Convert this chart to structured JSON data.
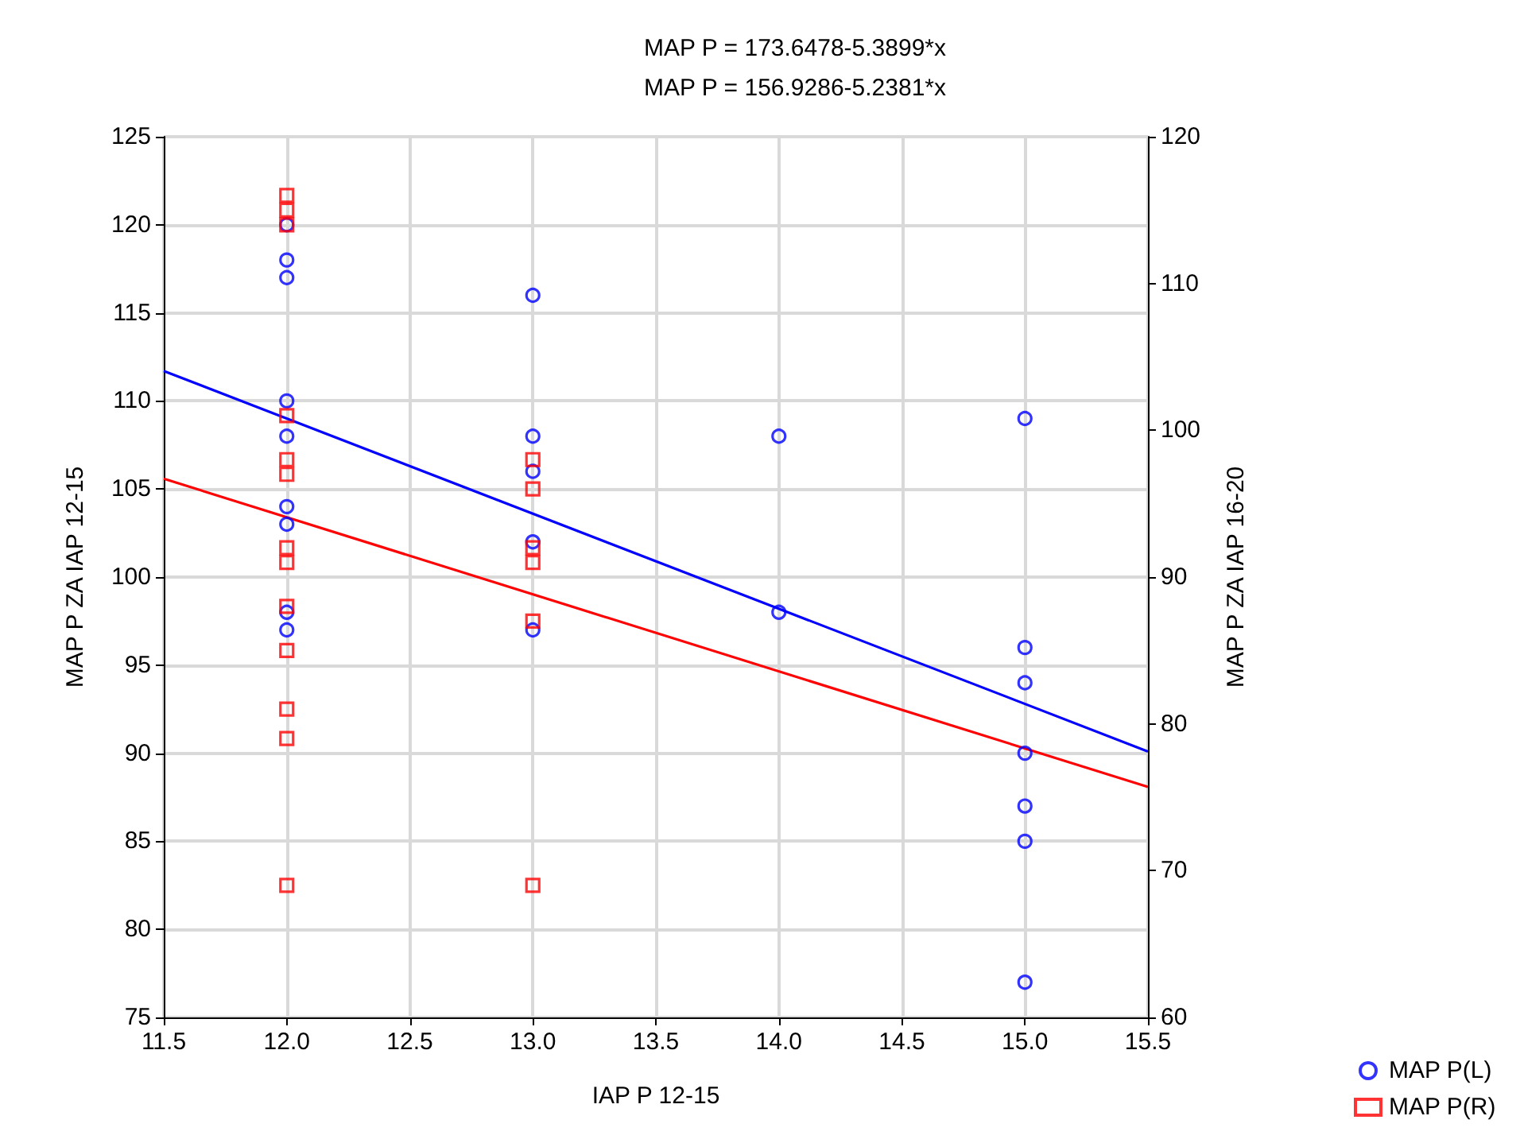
{
  "chart_data": {
    "type": "scatter",
    "title": "MAP P = 173.6478-5.3899*x",
    "subtitle": "MAP P = 156.9286-5.2381*x",
    "xlabel": "IAP P 12-15",
    "ylabel": "MAP P ZA IAP 12-15",
    "y2label": "MAP P ZA IAP 16-20",
    "xlim": [
      11.5,
      15.5
    ],
    "xticks": [
      {
        "value": 11.5,
        "label": "11.5"
      },
      {
        "value": 12,
        "label": "12.0"
      },
      {
        "value": 12.5,
        "label": "12.5"
      },
      {
        "value": 13,
        "label": "13.0"
      },
      {
        "value": 13.5,
        "label": "13.5"
      },
      {
        "value": 14,
        "label": "14.0"
      },
      {
        "value": 14.5,
        "label": "14.5"
      },
      {
        "value": 15,
        "label": "15.0"
      },
      {
        "value": 15.5,
        "label": "15.5"
      }
    ],
    "ylim": [
      75,
      125
    ],
    "yticks": [
      75,
      80,
      85,
      90,
      95,
      100,
      105,
      110,
      115,
      120,
      125
    ],
    "y2lim": [
      60,
      120
    ],
    "y2ticks": [
      60,
      70,
      80,
      90,
      100,
      110,
      120
    ],
    "grid": true,
    "legend": "bottom right",
    "series": [
      {
        "name": "MAP P(L)",
        "marker": "circle",
        "color": "#0000ff",
        "x": [
          12,
          12,
          12,
          12,
          12,
          12,
          12,
          12,
          12,
          13,
          13,
          13,
          13,
          13,
          14,
          14,
          15,
          15,
          15,
          15,
          15,
          15,
          15
        ],
        "values": [
          120,
          118,
          117,
          110,
          108,
          104,
          103,
          98,
          97,
          116,
          108,
          106,
          102,
          97,
          108,
          98,
          109,
          96,
          94,
          90,
          87,
          85,
          77
        ]
      },
      {
        "name": "MAP P(R)",
        "marker": "square",
        "axis": "y2",
        "color": "#ff0000",
        "x": [
          12,
          12,
          12,
          12,
          12,
          12,
          12,
          12,
          12,
          12,
          12,
          12,
          12,
          13,
          13,
          13,
          13,
          13,
          13
        ],
        "values": [
          116,
          115,
          114,
          101,
          98,
          97,
          92,
          91,
          88,
          85,
          81,
          79,
          69,
          98,
          96,
          92,
          91,
          87,
          69
        ]
      },
      {
        "type": "line",
        "color": "#0000ff",
        "x": [
          11.5,
          15.5
        ],
        "values": [
          111.7,
          90.1
        ]
      },
      {
        "type": "line",
        "axis": "y2",
        "color": "#ff0000",
        "x": [
          11.5,
          15.5
        ],
        "values": [
          96.7,
          75.7
        ]
      }
    ]
  }
}
